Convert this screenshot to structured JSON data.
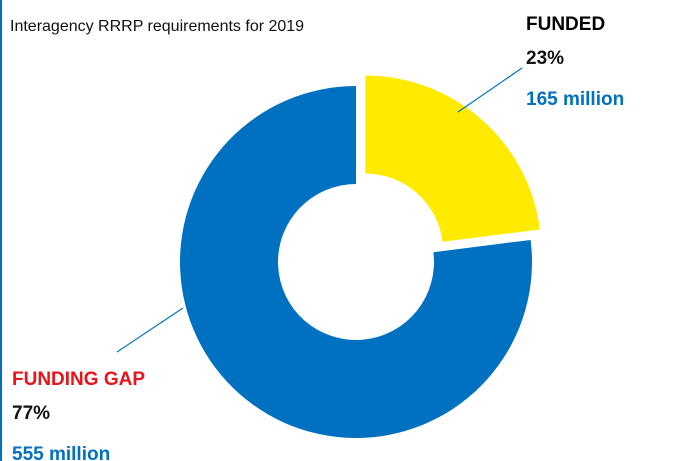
{
  "chart_data": {
    "type": "pie",
    "donut": true,
    "title": "Interagency RRRP requirements for 2019",
    "categories": [
      "FUNDED",
      "FUNDING GAP"
    ],
    "values": [
      23,
      77
    ],
    "value_labels": [
      "23%",
      "77%"
    ],
    "amount_labels": [
      "165 million",
      "555 million"
    ],
    "colors": [
      "#ffeb00",
      "#0070c0"
    ],
    "label_colors": [
      "#000000",
      "#e8141b"
    ],
    "amount_color": "#0070c0"
  }
}
